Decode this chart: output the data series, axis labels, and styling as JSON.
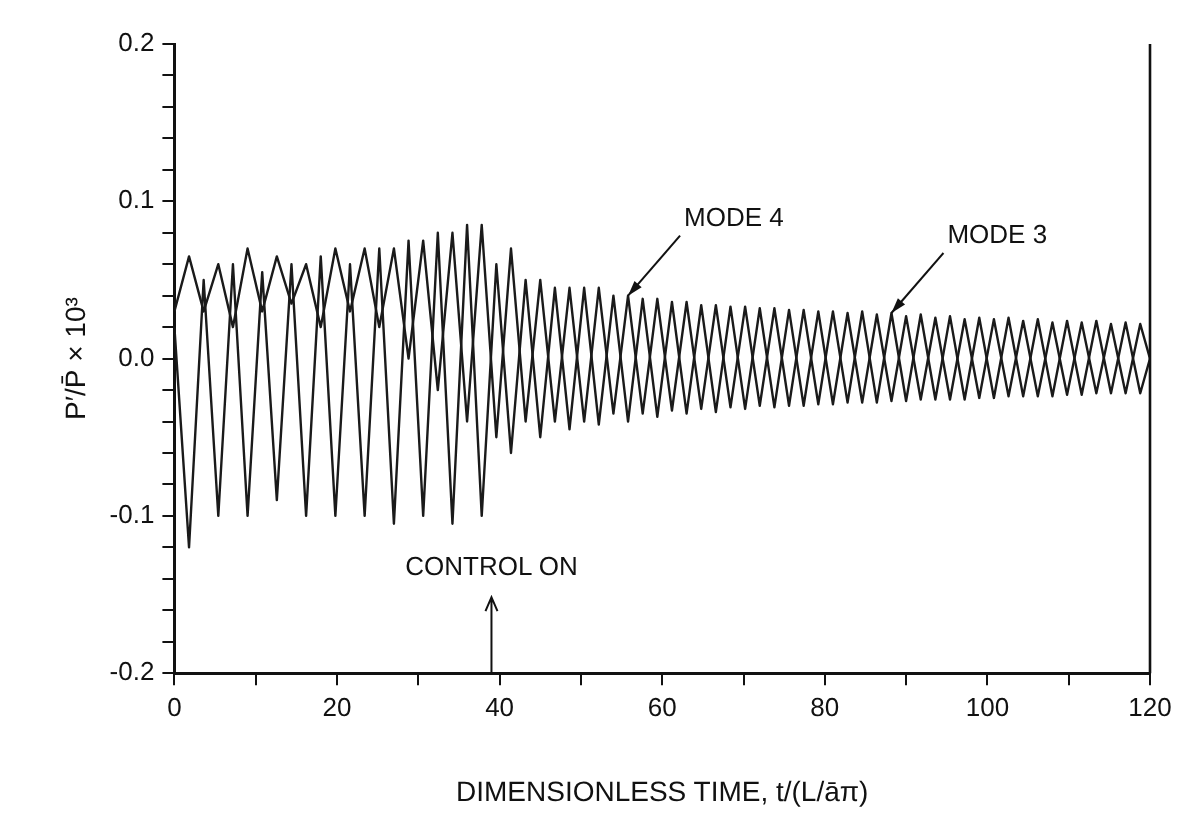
{
  "chart_data": {
    "type": "line",
    "xlabel": "DIMENSIONLESS TIME, t/(L/āπ)",
    "ylabel": "P′/P̄ × 10³",
    "x": [
      0,
      1.8,
      3.6,
      5.4,
      7.2,
      9,
      10.8,
      12.6,
      14.4,
      16.2,
      18,
      19.8,
      21.6,
      23.4,
      25.2,
      27,
      28.8,
      30.6,
      32.4,
      34.2,
      36,
      37.8,
      39.6,
      41.4,
      43.2,
      45,
      46.8,
      48.6,
      50.4,
      52.2,
      54,
      55.8,
      57.6,
      59.4,
      61.2,
      63,
      64.8,
      66.6,
      68.4,
      70.2,
      72,
      73.8,
      75.6,
      77.4,
      79.2,
      81,
      82.8,
      84.6,
      86.4,
      88.2,
      90,
      91.8,
      93.6,
      95.4,
      97.2,
      99,
      100.8,
      102.6,
      104.4,
      106.2,
      108,
      109.8,
      111.6,
      113.4,
      115.2,
      117,
      118.8,
      120
    ],
    "series": [
      {
        "color": "#1a1a1a",
        "values": [
          0.03,
          0.065,
          0.03,
          0.06,
          0.02,
          0.07,
          0.03,
          0.065,
          0.035,
          0.06,
          0.02,
          0.07,
          0.03,
          0.07,
          0.02,
          0.07,
          0.0,
          0.075,
          -0.02,
          0.08,
          -0.04,
          0.085,
          -0.05,
          0.07,
          -0.04,
          0.05,
          -0.04,
          0.045,
          -0.04,
          0.045,
          -0.035,
          0.04,
          -0.035,
          0.038,
          -0.033,
          0.036,
          -0.032,
          0.034,
          -0.031,
          0.033,
          -0.03,
          0.032,
          -0.03,
          0.031,
          -0.029,
          0.03,
          -0.028,
          0.03,
          -0.028,
          0.029,
          -0.027,
          0.028,
          -0.026,
          0.027,
          -0.026,
          0.026,
          -0.025,
          0.026,
          -0.024,
          0.025,
          -0.024,
          0.024,
          -0.023,
          0.024,
          -0.022,
          0.023,
          -0.022,
          0.0
        ]
      },
      {
        "color": "#1a1a1a",
        "values": [
          0.02,
          -0.12,
          0.05,
          -0.1,
          0.06,
          -0.1,
          0.055,
          -0.09,
          0.06,
          -0.1,
          0.065,
          -0.1,
          0.06,
          -0.1,
          0.07,
          -0.105,
          0.075,
          -0.1,
          0.08,
          -0.105,
          0.085,
          -0.1,
          0.06,
          -0.06,
          0.05,
          -0.05,
          0.045,
          -0.045,
          0.045,
          -0.042,
          0.04,
          -0.04,
          0.038,
          -0.037,
          0.036,
          -0.035,
          0.034,
          -0.034,
          0.033,
          -0.032,
          0.032,
          -0.031,
          0.031,
          -0.03,
          0.03,
          -0.029,
          0.029,
          -0.028,
          0.028,
          -0.027,
          0.027,
          -0.026,
          0.026,
          -0.026,
          0.025,
          -0.025,
          0.025,
          -0.024,
          0.024,
          -0.024,
          0.023,
          -0.023,
          0.023,
          -0.022,
          0.022,
          -0.022,
          0.022,
          0.0
        ]
      }
    ],
    "xlim": [
      0,
      120
    ],
    "xticks": [
      0,
      {
        "value": 10,
        "label": null
      },
      20,
      {
        "value": 30,
        "label": null
      },
      40,
      {
        "value": 50,
        "label": null
      },
      60,
      {
        "value": 70,
        "label": null
      },
      80,
      {
        "value": 90,
        "label": null
      },
      100,
      {
        "value": 110,
        "label": null
      },
      120
    ],
    "ylim": [
      -0.2,
      0.2
    ],
    "yticks": [
      -0.2,
      {
        "value": -0.18,
        "label": null
      },
      {
        "value": -0.16,
        "label": null
      },
      {
        "value": -0.14,
        "label": null
      },
      {
        "value": -0.12,
        "label": null
      },
      -0.1,
      {
        "value": -0.08,
        "label": null
      },
      {
        "value": -0.06,
        "label": null
      },
      {
        "value": -0.04,
        "label": null
      },
      {
        "value": -0.02,
        "label": null
      },
      {
        "value": 0,
        "label": "0.0"
      },
      {
        "value": 0.02,
        "label": null
      },
      {
        "value": 0.04,
        "label": null
      },
      {
        "value": 0.06,
        "label": null
      },
      {
        "value": 0.08,
        "label": null
      },
      0.1,
      {
        "value": 0.12,
        "label": null
      },
      {
        "value": 0.14,
        "label": null
      },
      {
        "value": 0.16,
        "label": null
      },
      {
        "value": 0.18,
        "label": null
      },
      0.2
    ],
    "grid": false,
    "legend": false,
    "marker": "none",
    "line_style": "solid",
    "ref_lines": [
      {
        "axis": "x",
        "value": 39,
        "label": "CONTROL ON"
      }
    ],
    "annotations": [
      {
        "text": "MODE 4",
        "x": 55.8,
        "y": 0.04
      },
      {
        "text": "MODE 3",
        "x": 88.2,
        "y": 0.029
      }
    ]
  }
}
